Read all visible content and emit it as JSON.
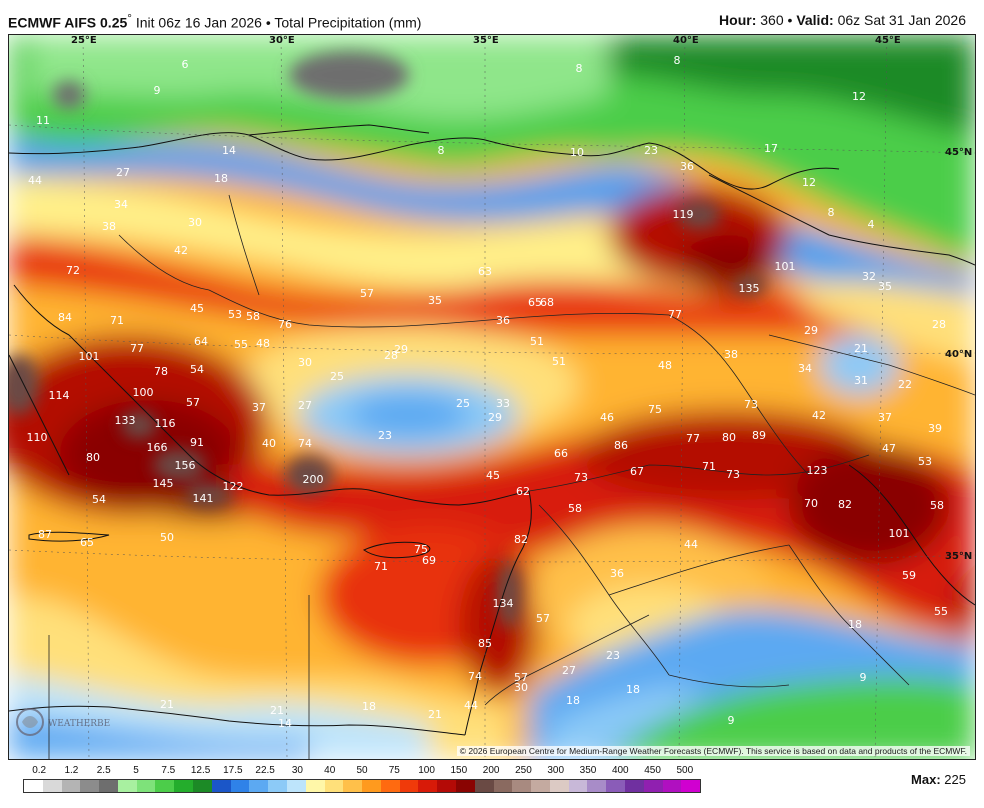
{
  "header": {
    "model": "ECMWF AIFS 0.25",
    "degree": "°",
    "init": "Init 06z 16 Jan 2026",
    "sep1": "•",
    "field": "Total Precipitation (mm)",
    "hour_label": "Hour",
    "hour_value": "360",
    "sep2": "•",
    "valid_label": "Valid",
    "valid_value": "06z Sat 31 Jan 2026"
  },
  "graticule": {
    "lon_labels": [
      "25°E",
      "30°E",
      "35°E",
      "40°E",
      "45°E"
    ],
    "lat_labels": [
      "45°N",
      "40°N",
      "35°N"
    ]
  },
  "map_values": [
    {
      "v": "6"
    },
    {
      "v": "9"
    },
    {
      "v": "8"
    },
    {
      "v": "8"
    },
    {
      "v": "12"
    },
    {
      "v": "11"
    },
    {
      "v": "14"
    },
    {
      "v": "18"
    },
    {
      "v": "8"
    },
    {
      "v": "10"
    },
    {
      "v": "23"
    },
    {
      "v": "36"
    },
    {
      "v": "17"
    },
    {
      "v": "12"
    },
    {
      "v": "8"
    },
    {
      "v": "4"
    },
    {
      "v": "44"
    },
    {
      "v": "27"
    },
    {
      "v": "34"
    },
    {
      "v": "38"
    },
    {
      "v": "30"
    },
    {
      "v": "42"
    },
    {
      "v": "119"
    },
    {
      "v": "101"
    },
    {
      "v": "32"
    },
    {
      "v": "35"
    },
    {
      "v": "72"
    },
    {
      "v": "63"
    },
    {
      "v": "135"
    },
    {
      "v": "28"
    },
    {
      "v": "84"
    },
    {
      "v": "71"
    },
    {
      "v": "45"
    },
    {
      "v": "53"
    },
    {
      "v": "58"
    },
    {
      "v": "76"
    },
    {
      "v": "57"
    },
    {
      "v": "35"
    },
    {
      "v": "65"
    },
    {
      "v": "68"
    },
    {
      "v": "36"
    },
    {
      "v": "77"
    },
    {
      "v": "29"
    },
    {
      "v": "21"
    },
    {
      "v": "101"
    },
    {
      "v": "77"
    },
    {
      "v": "64"
    },
    {
      "v": "55"
    },
    {
      "v": "48"
    },
    {
      "v": "28"
    },
    {
      "v": "29"
    },
    {
      "v": "51"
    },
    {
      "v": "38"
    },
    {
      "v": "31"
    },
    {
      "v": "22"
    },
    {
      "v": "30"
    },
    {
      "v": "51"
    },
    {
      "v": "34"
    },
    {
      "v": "114"
    },
    {
      "v": "78"
    },
    {
      "v": "54"
    },
    {
      "v": "25"
    },
    {
      "v": "48"
    },
    {
      "v": "100"
    },
    {
      "v": "57"
    },
    {
      "v": "37"
    },
    {
      "v": "27"
    },
    {
      "v": "25"
    },
    {
      "v": "33"
    },
    {
      "v": "73"
    },
    {
      "v": "133"
    },
    {
      "v": "116"
    },
    {
      "v": "29"
    },
    {
      "v": "46"
    },
    {
      "v": "75"
    },
    {
      "v": "42"
    },
    {
      "v": "37"
    },
    {
      "v": "39"
    },
    {
      "v": "110"
    },
    {
      "v": "23"
    },
    {
      "v": "91"
    },
    {
      "v": "40"
    },
    {
      "v": "74"
    },
    {
      "v": "166"
    },
    {
      "v": "86"
    },
    {
      "v": "77"
    },
    {
      "v": "80"
    },
    {
      "v": "89"
    },
    {
      "v": "47"
    },
    {
      "v": "80"
    },
    {
      "v": "156"
    },
    {
      "v": "66"
    },
    {
      "v": "53"
    },
    {
      "v": "67"
    },
    {
      "v": "71"
    },
    {
      "v": "73"
    },
    {
      "v": "73"
    },
    {
      "v": "123"
    },
    {
      "v": "200"
    },
    {
      "v": "145"
    },
    {
      "v": "45"
    },
    {
      "v": "122"
    },
    {
      "v": "141"
    },
    {
      "v": "62"
    },
    {
      "v": "58"
    },
    {
      "v": "54"
    },
    {
      "v": "70"
    },
    {
      "v": "82"
    },
    {
      "v": "58"
    },
    {
      "v": "87"
    },
    {
      "v": "50"
    },
    {
      "v": "65"
    },
    {
      "v": "82"
    },
    {
      "v": "44"
    },
    {
      "v": "101"
    },
    {
      "v": "75"
    },
    {
      "v": "69"
    },
    {
      "v": "71"
    },
    {
      "v": "36"
    },
    {
      "v": "59"
    },
    {
      "v": "134"
    },
    {
      "v": "57"
    },
    {
      "v": "55"
    },
    {
      "v": "18"
    },
    {
      "v": "85"
    },
    {
      "v": "23"
    },
    {
      "v": "27"
    },
    {
      "v": "74"
    },
    {
      "v": "57"
    },
    {
      "v": "30"
    },
    {
      "v": "18"
    },
    {
      "v": "9"
    },
    {
      "v": "21"
    },
    {
      "v": "44"
    },
    {
      "v": "18"
    },
    {
      "v": "21"
    },
    {
      "v": "18"
    },
    {
      "v": "14"
    },
    {
      "v": "21"
    },
    {
      "v": "9"
    }
  ],
  "copyright": "© 2026 European Centre for Medium-Range Weather Forecasts (ECMWF). This service is based on data and products of the ECMWF.",
  "legend": {
    "labels": [
      "0.2",
      "1.2",
      "2.5",
      "5",
      "7.5",
      "12.5",
      "17.5",
      "22.5",
      "30",
      "40",
      "50",
      "75",
      "100",
      "150",
      "200",
      "250",
      "300",
      "350",
      "400",
      "450",
      "500"
    ],
    "colors": [
      "#ffffff",
      "#d9d9d9",
      "#b4b4b4",
      "#8c8c8c",
      "#6e6e6e",
      "#a8f0a0",
      "#7ee27a",
      "#4ccd4a",
      "#24ad2c",
      "#1c8a26",
      "#1b56c8",
      "#2f82e8",
      "#5ca9f2",
      "#8ccaf7",
      "#bde4fb",
      "#fff7a8",
      "#ffe07a",
      "#ffc04a",
      "#ff9a1e",
      "#ff6a10",
      "#f03a0a",
      "#d81a08",
      "#b40a06",
      "#8a0402",
      "#6a4a44",
      "#8a6a60",
      "#a88a80",
      "#c4aaa0",
      "#dccac4",
      "#c8b8d8",
      "#a88cc8",
      "#8a5cb8",
      "#7030a0",
      "#9020b0",
      "#b010c0",
      "#d000d0"
    ]
  },
  "max": {
    "label": "Max",
    "value": "225"
  }
}
